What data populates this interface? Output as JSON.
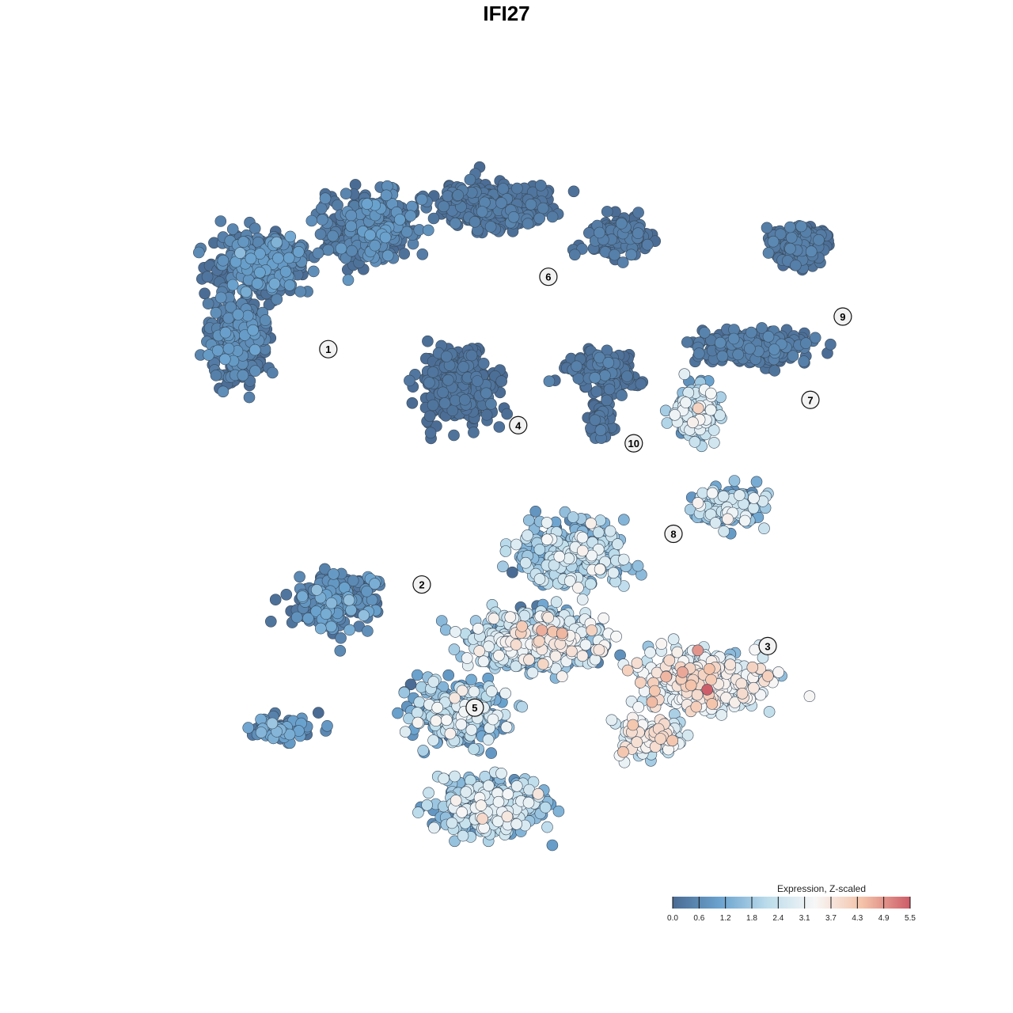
{
  "chart_data": {
    "type": "scatter",
    "title": "IFI27",
    "xlabel": "",
    "ylabel": "",
    "grid": false,
    "legend": {
      "title": "Expression, Z-scaled",
      "placement": "bottom-right",
      "min": 0.0,
      "max": 5.5,
      "ticks": [
        "0.0",
        "0.6",
        "1.2",
        "1.8",
        "2.4",
        "3.1",
        "3.7",
        "4.3",
        "4.9",
        "5.5"
      ],
      "colors": [
        "#4a6b93",
        "#6ba3cf",
        "#bcdceb",
        "#f7f7f7",
        "#f4c2a8",
        "#cd5c68"
      ]
    },
    "clusters": [
      {
        "label": "1",
        "x": 0.231,
        "y": 0.72
      },
      {
        "label": "2",
        "x": 0.358,
        "y": 0.395
      },
      {
        "label": "3",
        "x": 0.828,
        "y": 0.31
      },
      {
        "label": "4",
        "x": 0.489,
        "y": 0.615
      },
      {
        "label": "5",
        "x": 0.43,
        "y": 0.225
      },
      {
        "label": "6",
        "x": 0.53,
        "y": 0.82
      },
      {
        "label": "7",
        "x": 0.886,
        "y": 0.65
      },
      {
        "label": "8",
        "x": 0.7,
        "y": 0.465
      },
      {
        "label": "9",
        "x": 0.93,
        "y": 0.765
      },
      {
        "label": "10",
        "x": 0.646,
        "y": 0.59
      }
    ]
  }
}
